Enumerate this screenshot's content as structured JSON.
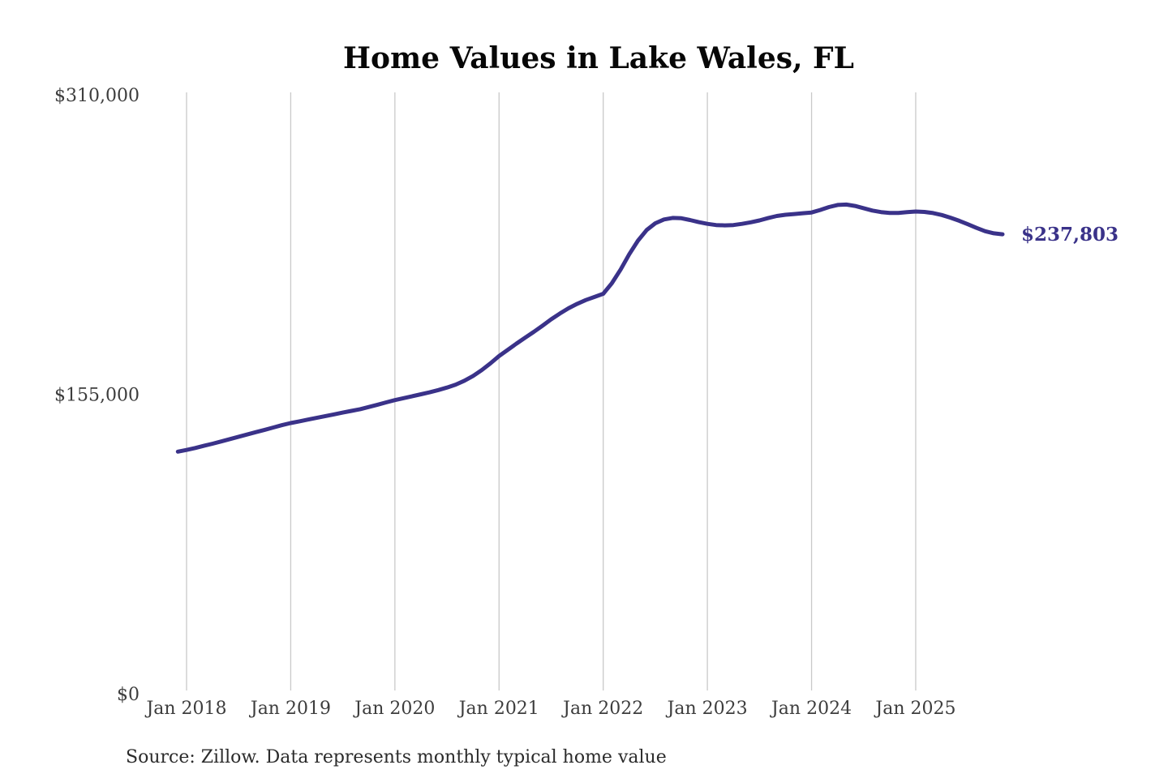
{
  "chart_data": {
    "type": "line",
    "title": "Home Values in Lake Wales, FL",
    "source_note": "Source: Zillow. Data represents monthly typical home value",
    "end_label": "$237,803",
    "latest_value": 237803,
    "ylim": [
      0,
      310000
    ],
    "grid": "vertical-only",
    "legend": "none",
    "x_ticks": [
      "Jan 2018",
      "Jan 2019",
      "Jan 2020",
      "Jan 2021",
      "Jan 2022",
      "Jan 2023",
      "Jan 2024",
      "Jan 2025"
    ],
    "y_ticks": [
      {
        "value": 0,
        "label": "$0"
      },
      {
        "value": 155000,
        "label": "$155,000"
      },
      {
        "value": 310000,
        "label": "$310,000"
      }
    ],
    "months": [
      "Dec 2017",
      "Jan 2018",
      "Feb 2018",
      "Mar 2018",
      "Apr 2018",
      "May 2018",
      "Jun 2018",
      "Jul 2018",
      "Aug 2018",
      "Sep 2018",
      "Oct 2018",
      "Nov 2018",
      "Dec 2018",
      "Jan 2019",
      "Feb 2019",
      "Mar 2019",
      "Apr 2019",
      "May 2019",
      "Jun 2019",
      "Jul 2019",
      "Aug 2019",
      "Sep 2019",
      "Oct 2019",
      "Nov 2019",
      "Dec 2019",
      "Jan 2020",
      "Feb 2020",
      "Mar 2020",
      "Apr 2020",
      "May 2020",
      "Jun 2020",
      "Jul 2020",
      "Aug 2020",
      "Sep 2020",
      "Oct 2020",
      "Nov 2020",
      "Dec 2020",
      "Jan 2021",
      "Feb 2021",
      "Mar 2021",
      "Apr 2021",
      "May 2021",
      "Jun 2021",
      "Jul 2021",
      "Aug 2021",
      "Sep 2021",
      "Oct 2021",
      "Nov 2021",
      "Dec 2021",
      "Jan 2022",
      "Feb 2022",
      "Mar 2022",
      "Apr 2022",
      "May 2022",
      "Jun 2022",
      "Jul 2022",
      "Aug 2022",
      "Sep 2022",
      "Oct 2022",
      "Nov 2022",
      "Dec 2022",
      "Jan 2023",
      "Feb 2023",
      "Mar 2023",
      "Apr 2023",
      "May 2023",
      "Jun 2023",
      "Jul 2023",
      "Aug 2023",
      "Sep 2023",
      "Oct 2023",
      "Nov 2023",
      "Dec 2023",
      "Jan 2024",
      "Feb 2024",
      "Mar 2024",
      "Apr 2024",
      "May 2024",
      "Jun 2024",
      "Jul 2024",
      "Aug 2024",
      "Sep 2024",
      "Oct 2024",
      "Nov 2024",
      "Dec 2024",
      "Jan 2025",
      "Feb 2025",
      "Mar 2025",
      "Apr 2025",
      "May 2025",
      "Jun 2025",
      "Jul 2025",
      "Aug 2025",
      "Sep 2025",
      "Oct 2025",
      "Nov 2025"
    ],
    "series": [
      {
        "name": "Monthly typical home value",
        "values": [
          125300,
          126200,
          127200,
          128300,
          129400,
          130600,
          131800,
          133000,
          134200,
          135400,
          136600,
          137800,
          139000,
          140100,
          141000,
          141900,
          142800,
          143700,
          144600,
          145500,
          146400,
          147300,
          148400,
          149600,
          150800,
          152000,
          153000,
          154000,
          155000,
          156000,
          157200,
          158500,
          160000,
          162000,
          164500,
          167500,
          171000,
          174800,
          178000,
          181200,
          184300,
          187300,
          190500,
          193800,
          196800,
          199500,
          201800,
          203800,
          205400,
          207000,
          212500,
          219500,
          227500,
          234500,
          240000,
          243500,
          245500,
          246300,
          246100,
          245200,
          244100,
          243200,
          242600,
          242400,
          242600,
          243200,
          244000,
          245000,
          246200,
          247300,
          247900,
          248300,
          248700,
          249100,
          250400,
          251900,
          253000,
          253200,
          252500,
          251300,
          250100,
          249300,
          248900,
          248900,
          249300,
          249600,
          249400,
          248800,
          247800,
          246400,
          244800,
          243000,
          241100,
          239400,
          238300,
          237803
        ]
      }
    ],
    "colors": {
      "line": "#3a3289",
      "grid": "#c9c9c9",
      "axis_labels": "#3d3d3d",
      "title": "#070707",
      "source": "#2b2b2b",
      "background": "#ffffff"
    }
  }
}
